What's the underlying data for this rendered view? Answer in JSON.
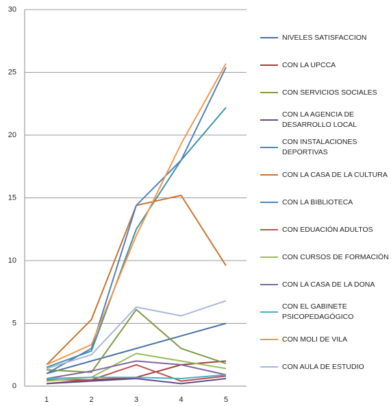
{
  "chart_data": {
    "type": "line",
    "categories": [
      1,
      2,
      3,
      4,
      5
    ],
    "ylim": [
      0,
      30
    ],
    "yticks": [
      0,
      5,
      10,
      15,
      20,
      25,
      30
    ],
    "grid": true,
    "legend": "right",
    "series": [
      {
        "name": "NIVELES SATISFACCION",
        "color": "#4a6fa5",
        "values": [
          1,
          2,
          3,
          4,
          5
        ]
      },
      {
        "name": "CON LA UPCCA",
        "color": "#a0403c",
        "values": [
          0.2,
          0.5,
          0.7,
          1.7,
          2.0
        ]
      },
      {
        "name": "CON SERVICIOS SOCIALES",
        "color": "#7f9a45",
        "values": [
          1.3,
          1.1,
          6.1,
          3.0,
          1.8
        ]
      },
      {
        "name": "CON LA AGENCIA DE DESARROLLO LOCAL",
        "color": "#5f4a8b",
        "values": [
          0.2,
          0.4,
          0.6,
          0.2,
          0.6
        ]
      },
      {
        "name": "CON INSTALACIONES DEPORTIVAS",
        "color": "#3c93a8",
        "values": [
          1.5,
          2.8,
          12.5,
          18.0,
          22.2
        ]
      },
      {
        "name": "CON LA CASA DE LA CULTURA",
        "color": "#c8742e",
        "values": [
          1.7,
          5.3,
          14.4,
          15.2,
          9.6
        ]
      },
      {
        "name": "CON LA BIBLIOTECA",
        "color": "#4f81bd",
        "values": [
          1.0,
          3.0,
          14.4,
          18.0,
          25.4
        ]
      },
      {
        "name": "CON EDUACIÓN ADULTOS",
        "color": "#c0504d",
        "values": [
          0.5,
          0.5,
          1.7,
          0.4,
          0.8
        ]
      },
      {
        "name": "CON CURSOS DE FORMACIÓN",
        "color": "#9bbb59",
        "values": [
          0.4,
          0.7,
          2.6,
          2.0,
          1.4
        ]
      },
      {
        "name": "CON LA CASA DE LA DONA",
        "color": "#8064a2",
        "values": [
          0.6,
          1.2,
          2.0,
          1.7,
          0.9
        ]
      },
      {
        "name": "CON EL GABINETE PSICOPEDAGÓGICO",
        "color": "#4bacc6",
        "values": [
          0.6,
          0.7,
          0.7,
          0.6,
          0.9
        ]
      },
      {
        "name": "CON MOLI DE VILA",
        "color": "#f79646",
        "values": [
          1.7,
          3.3,
          12.0,
          19.3,
          25.7
        ]
      },
      {
        "name": "CON AULA DE ESTUDIO",
        "color": "#a5b8da",
        "values": [
          1.4,
          2.5,
          6.3,
          5.6,
          6.8
        ]
      }
    ]
  }
}
